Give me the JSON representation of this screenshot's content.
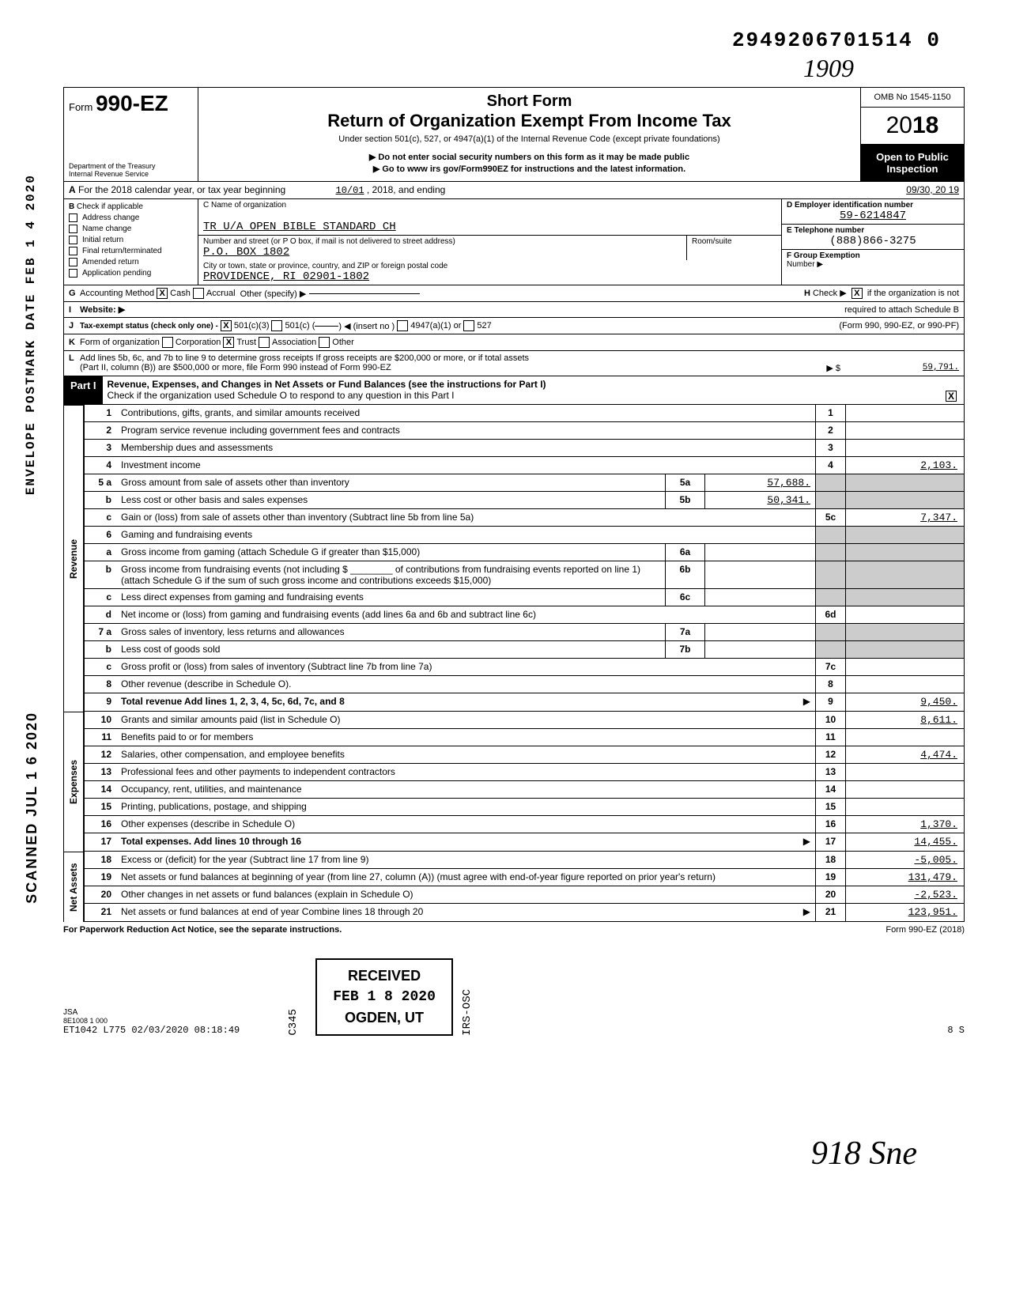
{
  "dln": "2949206701514 0",
  "handwritten_year": "1909",
  "form": {
    "prefix": "Form",
    "number": "990-EZ",
    "dept1": "Department of the Treasury",
    "dept2": "Internal Revenue Service"
  },
  "header": {
    "title1": "Short Form",
    "title2": "Return of Organization Exempt From Income Tax",
    "subtitle": "Under section 501(c), 527, or 4947(a)(1) of the Internal Revenue Code (except private foundations)",
    "note1": "▶ Do not enter social security numbers on this form as it may be made public",
    "note2": "▶ Go to www irs gov/Form990EZ for instructions and the latest information.",
    "omb": "OMB No 1545-1150",
    "year_prefix": "20",
    "year_bold": "18",
    "open1": "Open to Public",
    "open2": "Inspection"
  },
  "line_a": {
    "prefix": "A",
    "text1": "For the 2018 calendar year, or tax year beginning",
    "begin": "10/01",
    "text2": ", 2018, and ending",
    "end": "09/30, 20 19"
  },
  "section_b": {
    "label": "B",
    "note": "Check if applicable",
    "items": [
      "Address change",
      "Name change",
      "Initial return",
      "Final return/terminated",
      "Amended return",
      "Application pending"
    ]
  },
  "section_c": {
    "label_name": "C Name of organization",
    "name": "TR U/A OPEN BIBLE STANDARD CH",
    "label_addr": "Number and street (or P O box, if mail is not delivered to street address)",
    "addr": "P.O. BOX 1802",
    "room_label": "Room/suite",
    "label_city": "City or town, state or province, country, and ZIP or foreign postal code",
    "city": "PROVIDENCE, RI 02901-1802"
  },
  "section_d": {
    "label": "D  Employer identification number",
    "val": "59-6214847"
  },
  "section_e": {
    "label": "E  Telephone number",
    "val": "(888)866-3275"
  },
  "section_f": {
    "label": "F  Group Exemption",
    "label2": "Number ▶"
  },
  "line_g": {
    "label": "G",
    "text": "Accounting Method",
    "cash_x": "X",
    "cash": "Cash",
    "accrual": "Accrual",
    "other": "Other (specify) ▶"
  },
  "line_h": {
    "label": "H",
    "text1": "Check ▶",
    "x": "X",
    "text2": "if the organization is not",
    "text3": "required to attach Schedule B",
    "text4": "(Form 990, 990-EZ, or 990-PF)"
  },
  "line_i": {
    "label": "I",
    "text": "Website: ▶"
  },
  "line_j": {
    "label": "J",
    "text": "Tax-exempt status (check only one) -",
    "x": "X",
    "opt1": "501(c)(3)",
    "opt2": "501(c) (",
    "opt2b": ") ◀ (insert no )",
    "opt3": "4947(a)(1) or",
    "opt4": "527"
  },
  "line_k": {
    "label": "K",
    "text": "Form of organization",
    "opts": [
      "Corporation",
      "Trust",
      "Association",
      "Other"
    ],
    "x_idx": 1
  },
  "line_l": {
    "label": "L",
    "text1": "Add lines 5b, 6c, and 7b to line 9 to determine gross receipts  If gross receipts are $200,000 or more, or if total assets",
    "text2": "(Part II, column (B)) are $500,000 or more, file Form 990 instead of Form 990-EZ",
    "arrow": "▶  $",
    "val": "59,791."
  },
  "part1": {
    "label": "Part I",
    "title": "Revenue, Expenses, and Changes in Net Assets or Fund Balances (see the instructions for Part I)",
    "check_text": "Check if the organization used Schedule O to respond to any question in this Part I",
    "check_x": "X"
  },
  "sections": {
    "revenue": "Revenue",
    "expenses": "Expenses",
    "netassets": "Net Assets"
  },
  "lines": [
    {
      "no": "1",
      "desc": "Contributions, gifts, grants, and similar amounts received",
      "col": "1",
      "val": ""
    },
    {
      "no": "2",
      "desc": "Program service revenue including government fees and contracts",
      "col": "2",
      "val": ""
    },
    {
      "no": "3",
      "desc": "Membership dues and assessments",
      "col": "3",
      "val": ""
    },
    {
      "no": "4",
      "desc": "Investment income",
      "col": "4",
      "val": "2,103."
    },
    {
      "no": "5 a",
      "desc": "Gross amount from sale of assets other than inventory",
      "sub_no": "5a",
      "sub_val": "57,688.",
      "grey": true
    },
    {
      "no": "b",
      "desc": "Less cost or other basis and sales expenses",
      "sub_no": "5b",
      "sub_val": "50,341.",
      "grey": true
    },
    {
      "no": "c",
      "desc": "Gain or (loss) from sale of assets other than inventory (Subtract line 5b from line 5a)",
      "col": "5c",
      "val": "7,347."
    },
    {
      "no": "6",
      "desc": "Gaming and fundraising events",
      "grey": true,
      "nocol": true
    },
    {
      "no": "a",
      "desc": "Gross income from gaming (attach Schedule G if greater than $15,000)",
      "sub_no": "6a",
      "sub_val": "",
      "grey": true
    },
    {
      "no": "b",
      "desc": "Gross income from fundraising events (not including $ ________ of contributions from fundraising events reported on line 1) (attach Schedule G if the sum of such gross income and contributions exceeds $15,000)",
      "sub_no": "6b",
      "sub_val": "",
      "grey": true
    },
    {
      "no": "c",
      "desc": "Less direct expenses from gaming and fundraising events",
      "sub_no": "6c",
      "sub_val": "",
      "grey": true
    },
    {
      "no": "d",
      "desc": "Net income or (loss) from gaming and fundraising events (add lines 6a and 6b and subtract line 6c)",
      "col": "6d",
      "val": ""
    },
    {
      "no": "7 a",
      "desc": "Gross sales of inventory, less returns and allowances",
      "sub_no": "7a",
      "sub_val": "",
      "grey": true
    },
    {
      "no": "b",
      "desc": "Less cost of goods sold",
      "sub_no": "7b",
      "sub_val": "",
      "grey": true
    },
    {
      "no": "c",
      "desc": "Gross profit or (loss) from sales of inventory (Subtract line 7b from line 7a)",
      "col": "7c",
      "val": ""
    },
    {
      "no": "8",
      "desc": "Other revenue (describe in Schedule O).",
      "col": "8",
      "val": ""
    },
    {
      "no": "9",
      "desc": "Total revenue  Add lines 1, 2, 3, 4, 5c, 6d, 7c, and 8",
      "col": "9",
      "val": "9,450.",
      "bold": true,
      "arrow": true
    }
  ],
  "expense_lines": [
    {
      "no": "10",
      "desc": "Grants and similar amounts paid (list in Schedule O)",
      "col": "10",
      "val": "8,611."
    },
    {
      "no": "11",
      "desc": "Benefits paid to or for members",
      "col": "11",
      "val": ""
    },
    {
      "no": "12",
      "desc": "Salaries, other compensation, and employee benefits",
      "col": "12",
      "val": "4,474."
    },
    {
      "no": "13",
      "desc": "Professional fees and other payments to independent contractors",
      "col": "13",
      "val": ""
    },
    {
      "no": "14",
      "desc": "Occupancy, rent, utilities, and maintenance",
      "col": "14",
      "val": ""
    },
    {
      "no": "15",
      "desc": "Printing, publications, postage, and shipping",
      "col": "15",
      "val": ""
    },
    {
      "no": "16",
      "desc": "Other expenses (describe in Schedule O)",
      "col": "16",
      "val": "1,370."
    },
    {
      "no": "17",
      "desc": "Total expenses. Add lines 10 through 16",
      "col": "17",
      "val": "14,455.",
      "bold": true,
      "arrow": true
    }
  ],
  "netasset_lines": [
    {
      "no": "18",
      "desc": "Excess or (deficit) for the year (Subtract line 17 from line 9)",
      "col": "18",
      "val": "-5,005."
    },
    {
      "no": "19",
      "desc": "Net assets or fund balances at beginning of year (from line 27, column (A)) (must agree with end-of-year figure reported on prior year's return)",
      "col": "19",
      "val": "131,479."
    },
    {
      "no": "20",
      "desc": "Other changes in net assets or fund balances (explain in Schedule O)",
      "col": "20",
      "val": "-2,523."
    },
    {
      "no": "21",
      "desc": "Net assets or fund balances at end of year Combine lines 18 through 20",
      "col": "21",
      "val": "123,951.",
      "arrow": true
    }
  ],
  "footer": {
    "left": "For Paperwork Reduction Act Notice, see the separate instructions.",
    "right": "Form 990-EZ (2018)"
  },
  "stamps": {
    "received": "RECEIVED",
    "date": "FEB 1 8 2020",
    "ogden": "OGDEN, UT",
    "feb_circle": "FEB.1 8.2020",
    "envelope": "ENVELOPE\nPOSTMARK DATE  FEB 1 4 2020",
    "scanned": "SCANNED  JUL 1 6 2020",
    "irs_osc": "IRS-OSC",
    "c345": "C345"
  },
  "jsa": {
    "label": "JSA",
    "code": "8E1008 1 000",
    "line": "ET1042 L775 02/03/2020 08:18:49",
    "page": "8      S"
  },
  "sig": "918   Sne"
}
